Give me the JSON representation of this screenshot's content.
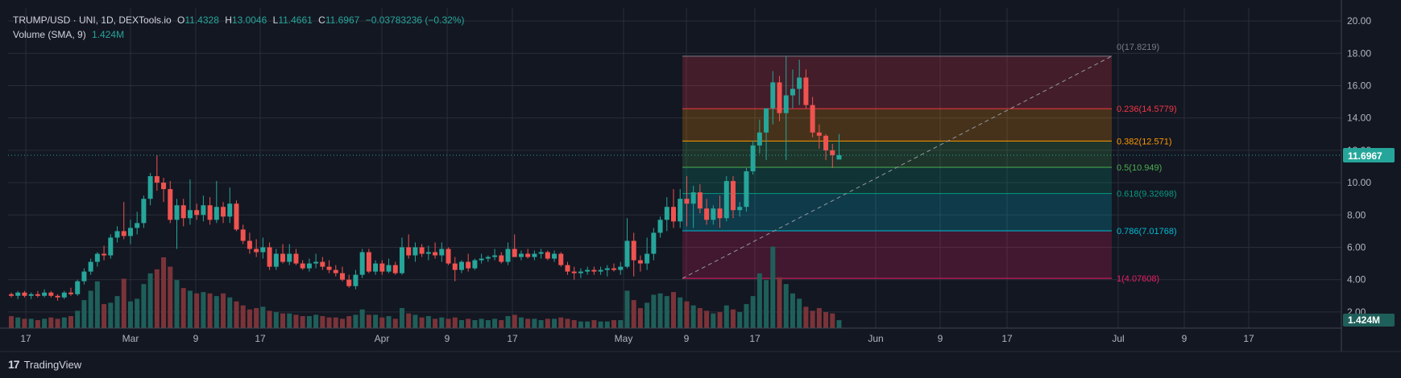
{
  "header": {
    "symbol": "TRUMP/USD · UNI, 1D, DEXTools.io",
    "o_label": "O",
    "o_value": "11.4328",
    "h_label": "H",
    "h_value": "13.0046",
    "l_label": "L",
    "l_value": "11.4661",
    "c_label": "C",
    "c_value": "11.6967",
    "change": "−0.03783236 (−0.32%)",
    "volume_label": "Volume (SMA, 9)",
    "volume_value": "1.424M"
  },
  "branding": {
    "logo": "17",
    "name": "TradingView"
  },
  "colors": {
    "background": "#131722",
    "grid": "#2a2e39",
    "up": "#26a69a",
    "down": "#ef5350",
    "up_volume": "#1f5f5a",
    "down_volume": "#7a3439",
    "axis_text": "#b2b5be"
  },
  "chart_data": {
    "type": "candlestick",
    "title": "TRUMP/USD · UNI, 1D, DEXTools.io",
    "y_axis": {
      "ticks": [
        "2.00",
        "4.00",
        "6.00",
        "8.00",
        "10.00",
        "12.00",
        "14.00",
        "16.00",
        "18.00",
        "20.00"
      ],
      "range": [
        1,
        20.8
      ]
    },
    "x_axis": {
      "ticks": [
        "17",
        "Mar",
        "9",
        "17",
        "Apr",
        "9",
        "17",
        "May",
        "9",
        "17",
        "Jun",
        "9",
        "17",
        "Jul",
        "9",
        "17"
      ]
    },
    "last_price_label": "11.6967",
    "volume_label": "1.424M",
    "ohlc": [
      [
        3.1,
        3.2,
        2.9,
        3.0
      ],
      [
        3.0,
        3.3,
        2.8,
        3.2
      ],
      [
        3.2,
        3.3,
        2.9,
        3.0
      ],
      [
        3.0,
        3.2,
        2.8,
        3.1
      ],
      [
        3.1,
        3.3,
        2.9,
        3.0
      ],
      [
        3.0,
        3.4,
        2.9,
        3.2
      ],
      [
        3.2,
        3.3,
        2.9,
        3.0
      ],
      [
        3.0,
        3.1,
        2.7,
        2.9
      ],
      [
        2.9,
        3.3,
        2.8,
        3.2
      ],
      [
        3.2,
        3.5,
        3.0,
        3.1
      ],
      [
        3.1,
        4.0,
        3.0,
        3.9
      ],
      [
        3.9,
        4.7,
        3.7,
        4.5
      ],
      [
        4.5,
        5.3,
        4.3,
        5.1
      ],
      [
        5.1,
        5.7,
        4.8,
        5.6
      ],
      [
        5.6,
        6.1,
        5.2,
        5.5
      ],
      [
        5.5,
        6.8,
        5.3,
        6.6
      ],
      [
        6.6,
        7.3,
        6.3,
        7.0
      ],
      [
        7.0,
        8.8,
        6.5,
        6.7
      ],
      [
        6.7,
        7.7,
        6.2,
        7.2
      ],
      [
        7.2,
        8.2,
        6.8,
        7.5
      ],
      [
        7.5,
        9.2,
        7.2,
        9.0
      ],
      [
        9.0,
        10.6,
        8.6,
        10.4
      ],
      [
        10.4,
        11.7,
        9.5,
        10.0
      ],
      [
        10.0,
        10.3,
        8.8,
        9.6
      ],
      [
        9.6,
        10.1,
        7.5,
        7.7
      ],
      [
        7.7,
        9.0,
        5.9,
        8.6
      ],
      [
        8.6,
        9.0,
        7.3,
        7.8
      ],
      [
        7.8,
        10.2,
        7.4,
        8.3
      ],
      [
        8.3,
        8.7,
        7.7,
        8.0
      ],
      [
        8.0,
        9.2,
        7.6,
        8.6
      ],
      [
        8.6,
        9.1,
        7.4,
        7.7
      ],
      [
        7.7,
        10.1,
        7.5,
        8.5
      ],
      [
        8.5,
        8.8,
        7.5,
        7.9
      ],
      [
        7.9,
        9.7,
        7.5,
        8.7
      ],
      [
        8.7,
        8.9,
        7.0,
        7.1
      ],
      [
        7.1,
        7.4,
        6.2,
        6.4
      ],
      [
        6.4,
        6.9,
        5.6,
        5.9
      ],
      [
        5.9,
        6.5,
        5.4,
        5.7
      ],
      [
        5.7,
        6.6,
        5.3,
        6.0
      ],
      [
        6.0,
        6.3,
        4.6,
        4.8
      ],
      [
        4.8,
        5.9,
        4.6,
        5.6
      ],
      [
        5.6,
        6.2,
        5.0,
        5.1
      ],
      [
        5.1,
        6.2,
        4.9,
        5.6
      ],
      [
        5.6,
        5.9,
        4.9,
        5.0
      ],
      [
        5.0,
        5.2,
        4.6,
        4.7
      ],
      [
        4.7,
        5.3,
        4.5,
        5.0
      ],
      [
        5.0,
        5.6,
        4.7,
        5.1
      ],
      [
        5.1,
        5.4,
        4.6,
        4.8
      ],
      [
        4.8,
        5.2,
        4.4,
        4.6
      ],
      [
        4.6,
        4.9,
        4.2,
        4.4
      ],
      [
        4.4,
        4.8,
        3.9,
        4.0
      ],
      [
        4.0,
        4.3,
        3.5,
        3.6
      ],
      [
        3.6,
        4.6,
        3.4,
        4.3
      ],
      [
        4.3,
        5.9,
        4.1,
        5.7
      ],
      [
        5.7,
        5.9,
        4.4,
        4.5
      ],
      [
        4.5,
        5.2,
        4.3,
        5.0
      ],
      [
        5.0,
        5.2,
        4.3,
        4.5
      ],
      [
        4.5,
        5.3,
        4.4,
        4.9
      ],
      [
        4.9,
        5.1,
        4.3,
        4.4
      ],
      [
        4.4,
        6.6,
        4.3,
        6.0
      ],
      [
        6.0,
        6.8,
        5.3,
        5.5
      ],
      [
        5.5,
        6.3,
        5.1,
        6.0
      ],
      [
        6.0,
        6.2,
        5.4,
        5.6
      ],
      [
        5.6,
        6.1,
        5.2,
        5.7
      ],
      [
        5.7,
        6.3,
        5.3,
        5.5
      ],
      [
        5.5,
        6.3,
        5.1,
        5.9
      ],
      [
        5.9,
        6.0,
        4.9,
        5.0
      ],
      [
        5.0,
        5.4,
        3.9,
        4.6
      ],
      [
        4.6,
        5.2,
        4.4,
        5.1
      ],
      [
        5.1,
        5.6,
        4.5,
        4.7
      ],
      [
        4.7,
        5.3,
        4.6,
        5.2
      ],
      [
        5.2,
        5.6,
        5.0,
        5.3
      ],
      [
        5.3,
        5.5,
        5.1,
        5.4
      ],
      [
        5.4,
        5.9,
        5.2,
        5.5
      ],
      [
        5.5,
        5.7,
        5.0,
        5.1
      ],
      [
        5.1,
        6.3,
        4.9,
        5.9
      ],
      [
        5.9,
        6.8,
        5.4,
        5.4
      ],
      [
        5.4,
        5.8,
        5.2,
        5.6
      ],
      [
        5.6,
        5.9,
        5.3,
        5.4
      ],
      [
        5.4,
        5.8,
        5.2,
        5.6
      ],
      [
        5.6,
        5.9,
        5.3,
        5.7
      ],
      [
        5.7,
        5.8,
        5.2,
        5.3
      ],
      [
        5.3,
        5.8,
        5.1,
        5.6
      ],
      [
        5.6,
        5.7,
        4.8,
        4.9
      ],
      [
        4.9,
        5.1,
        4.3,
        4.5
      ],
      [
        4.5,
        4.8,
        4.0,
        4.4
      ],
      [
        4.4,
        4.7,
        4.1,
        4.5
      ],
      [
        4.5,
        4.8,
        4.3,
        4.6
      ],
      [
        4.6,
        4.8,
        4.3,
        4.5
      ],
      [
        4.5,
        4.8,
        4.3,
        4.6
      ],
      [
        4.6,
        4.9,
        4.2,
        4.7
      ],
      [
        4.7,
        5.0,
        4.5,
        4.6
      ],
      [
        4.6,
        5.1,
        4.3,
        4.8
      ],
      [
        4.8,
        7.8,
        4.7,
        6.4
      ],
      [
        6.4,
        6.9,
        4.2,
        5.2
      ],
      [
        5.2,
        5.5,
        4.5,
        5.0
      ],
      [
        5.0,
        6.6,
        4.6,
        5.6
      ],
      [
        5.6,
        7.2,
        5.2,
        6.9
      ],
      [
        6.9,
        7.9,
        6.6,
        7.7
      ],
      [
        7.7,
        9.1,
        7.0,
        8.5
      ],
      [
        8.5,
        9.6,
        7.2,
        7.6
      ],
      [
        7.6,
        9.6,
        7.2,
        9.0
      ],
      [
        9.0,
        10.4,
        7.3,
        8.7
      ],
      [
        8.7,
        9.8,
        7.2,
        9.4
      ],
      [
        9.4,
        9.9,
        8.1,
        8.4
      ],
      [
        8.4,
        9.0,
        7.4,
        7.7
      ],
      [
        7.7,
        8.6,
        7.4,
        8.4
      ],
      [
        8.4,
        9.2,
        7.2,
        7.8
      ],
      [
        7.8,
        10.4,
        7.6,
        10.1
      ],
      [
        10.1,
        10.4,
        7.8,
        8.3
      ],
      [
        8.3,
        8.8,
        7.9,
        8.5
      ],
      [
        8.5,
        10.9,
        8.2,
        10.7
      ],
      [
        10.7,
        12.6,
        10.5,
        12.3
      ],
      [
        12.3,
        13.9,
        11.8,
        13.1
      ],
      [
        13.1,
        14.5,
        11.4,
        14.6
      ],
      [
        14.6,
        16.9,
        13.6,
        16.2
      ],
      [
        16.2,
        16.6,
        13.8,
        14.3
      ],
      [
        14.3,
        17.8,
        11.4,
        15.4
      ],
      [
        15.4,
        17.0,
        14.6,
        15.8
      ],
      [
        15.8,
        17.6,
        14.8,
        16.5
      ],
      [
        16.5,
        17.0,
        14.6,
        14.8
      ],
      [
        14.8,
        15.3,
        12.8,
        13.1
      ],
      [
        13.1,
        13.6,
        12.1,
        12.9
      ],
      [
        12.9,
        13.0,
        11.4,
        12.0
      ],
      [
        12.0,
        12.4,
        10.9,
        11.7
      ],
      [
        11.43,
        13.0,
        11.47,
        11.7
      ]
    ],
    "volume": [
      0.9,
      0.8,
      0.7,
      0.7,
      0.6,
      0.7,
      0.8,
      0.7,
      0.8,
      0.9,
      1.3,
      2.1,
      2.8,
      3.5,
      1.8,
      1.9,
      2.4,
      3.7,
      2.0,
      2.2,
      3.3,
      4.1,
      4.4,
      5.3,
      4.6,
      3.6,
      3.0,
      2.8,
      2.6,
      2.7,
      2.6,
      2.4,
      2.6,
      2.3,
      2.0,
      1.7,
      1.4,
      1.5,
      1.6,
      1.3,
      1.2,
      1.1,
      1.1,
      1.0,
      0.9,
      0.9,
      1.0,
      0.9,
      0.8,
      0.8,
      0.7,
      0.9,
      1.0,
      1.4,
      1.0,
      1.0,
      0.8,
      0.9,
      0.7,
      1.5,
      1.1,
      1.0,
      0.8,
      0.9,
      0.7,
      0.8,
      0.7,
      0.8,
      0.6,
      0.7,
      0.6,
      0.7,
      0.6,
      0.7,
      0.6,
      0.9,
      1.0,
      0.8,
      0.7,
      0.7,
      0.6,
      0.7,
      0.7,
      0.8,
      0.7,
      0.6,
      0.5,
      0.5,
      0.6,
      0.5,
      0.5,
      0.6,
      0.6,
      2.8,
      2.1,
      1.5,
      1.9,
      2.5,
      2.6,
      2.4,
      2.7,
      2.3,
      2.0,
      1.7,
      1.5,
      1.3,
      1.1,
      1.2,
      1.7,
      1.4,
      1.2,
      1.8,
      2.4,
      4.1,
      3.6,
      6.1,
      3.8,
      3.3,
      2.6,
      2.2,
      1.6,
      1.3,
      1.5,
      1.2,
      1.1,
      0.6
    ],
    "fibonacci": {
      "from": 4.07608,
      "to": 17.8219,
      "levels": [
        {
          "label": "0(17.8219)",
          "value": 17.8219,
          "color": "#787b86"
        },
        {
          "label": "0.236(14.5779)",
          "value": 14.5779,
          "color": "#f23645"
        },
        {
          "label": "0.382(12.571)",
          "value": 12.571,
          "color": "#ff9800"
        },
        {
          "label": "0.5(10.949)",
          "value": 10.949,
          "color": "#4caf50"
        },
        {
          "label": "0.618(9.32698)",
          "value": 9.32698,
          "color": "#089981"
        },
        {
          "label": "0.786(7.01768)",
          "value": 7.01768,
          "color": "#00bcd4"
        },
        {
          "label": "1(4.07608)",
          "value": 4.07608,
          "color": "#e91e63"
        }
      ],
      "bands": [
        {
          "from": 17.8219,
          "to": 14.5779,
          "color": "rgba(242,54,69,0.22)"
        },
        {
          "from": 14.5779,
          "to": 12.571,
          "color": "rgba(255,152,0,0.22)"
        },
        {
          "from": 12.571,
          "to": 10.949,
          "color": "rgba(76,175,80,0.2)"
        },
        {
          "from": 10.949,
          "to": 9.32698,
          "color": "rgba(8,153,129,0.22)"
        },
        {
          "from": 9.32698,
          "to": 7.01768,
          "color": "rgba(0,188,212,0.22)"
        },
        {
          "from": 7.01768,
          "to": 4.07608,
          "color": "rgba(233,30,99,0.22)"
        }
      ]
    }
  }
}
